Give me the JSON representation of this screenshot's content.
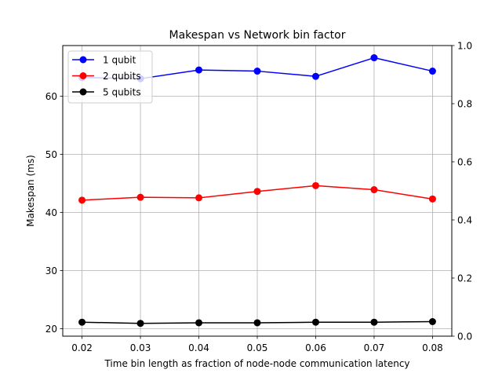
{
  "chart_data": {
    "type": "line",
    "title": "Makespan vs Network bin factor",
    "xlabel": "Time bin length as fraction of node-node communication latency",
    "ylabel": "Makespan (ms)",
    "x": [
      0.02,
      0.03,
      0.04,
      0.05,
      0.06,
      0.07,
      0.08
    ],
    "x_tick_labels": [
      "0.02",
      "0.03",
      "0.04",
      "0.05",
      "0.06",
      "0.07",
      "0.08"
    ],
    "xlim": [
      0.0167,
      0.0833
    ],
    "ylim": [
      18.7,
      68.7
    ],
    "y_ticks": [
      20,
      30,
      40,
      50,
      60
    ],
    "y_tick_labels": [
      "20",
      "30",
      "40",
      "50",
      "60"
    ],
    "y2lim": [
      0.0,
      1.0
    ],
    "y2_ticks": [
      0.0,
      0.2,
      0.4,
      0.6,
      0.8,
      1.0
    ],
    "y2_tick_labels": [
      "0.0",
      "0.2",
      "0.4",
      "0.6",
      "0.8",
      "1.0"
    ],
    "grid": true,
    "legend_position": "top-left",
    "series": [
      {
        "name": "1 qubit",
        "color": "#0000ff",
        "values": [
          63.2,
          63.0,
          64.5,
          64.3,
          63.4,
          66.6,
          64.3
        ]
      },
      {
        "name": "2 qubits",
        "color": "#ff0000",
        "values": [
          42.1,
          42.6,
          42.5,
          43.6,
          44.6,
          43.9,
          42.3
        ]
      },
      {
        "name": "5 qubits",
        "color": "#000000",
        "values": [
          21.1,
          20.9,
          21.0,
          21.0,
          21.1,
          21.1,
          21.2
        ]
      }
    ]
  }
}
